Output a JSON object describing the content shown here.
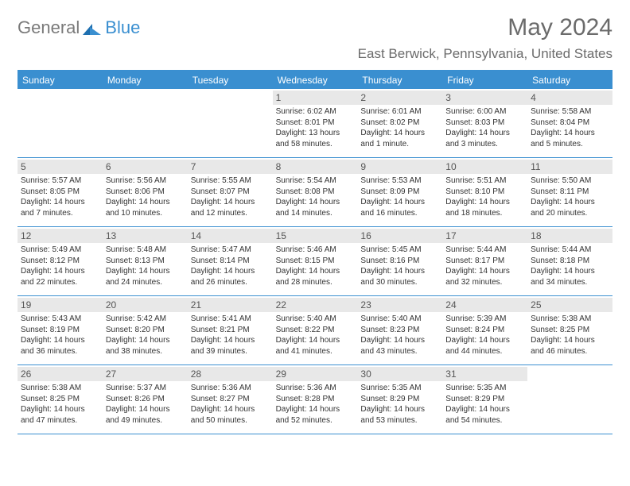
{
  "logo": {
    "part1": "General",
    "part2": "Blue"
  },
  "title": "May 2024",
  "location": "East Berwick, Pennsylvania, United States",
  "day_headers": [
    "Sunday",
    "Monday",
    "Tuesday",
    "Wednesday",
    "Thursday",
    "Friday",
    "Saturday"
  ],
  "colors": {
    "accent": "#3a8fd0",
    "header_gray": "#e8e8e8",
    "text_gray": "#6b6b6b"
  },
  "weeks": [
    [
      {
        "empty": true
      },
      {
        "empty": true
      },
      {
        "empty": true
      },
      {
        "day": "1",
        "sunrise": "Sunrise: 6:02 AM",
        "sunset": "Sunset: 8:01 PM",
        "daylight": "Daylight: 13 hours and 58 minutes."
      },
      {
        "day": "2",
        "sunrise": "Sunrise: 6:01 AM",
        "sunset": "Sunset: 8:02 PM",
        "daylight": "Daylight: 14 hours and 1 minute."
      },
      {
        "day": "3",
        "sunrise": "Sunrise: 6:00 AM",
        "sunset": "Sunset: 8:03 PM",
        "daylight": "Daylight: 14 hours and 3 minutes."
      },
      {
        "day": "4",
        "sunrise": "Sunrise: 5:58 AM",
        "sunset": "Sunset: 8:04 PM",
        "daylight": "Daylight: 14 hours and 5 minutes."
      }
    ],
    [
      {
        "day": "5",
        "sunrise": "Sunrise: 5:57 AM",
        "sunset": "Sunset: 8:05 PM",
        "daylight": "Daylight: 14 hours and 7 minutes."
      },
      {
        "day": "6",
        "sunrise": "Sunrise: 5:56 AM",
        "sunset": "Sunset: 8:06 PM",
        "daylight": "Daylight: 14 hours and 10 minutes."
      },
      {
        "day": "7",
        "sunrise": "Sunrise: 5:55 AM",
        "sunset": "Sunset: 8:07 PM",
        "daylight": "Daylight: 14 hours and 12 minutes."
      },
      {
        "day": "8",
        "sunrise": "Sunrise: 5:54 AM",
        "sunset": "Sunset: 8:08 PM",
        "daylight": "Daylight: 14 hours and 14 minutes."
      },
      {
        "day": "9",
        "sunrise": "Sunrise: 5:53 AM",
        "sunset": "Sunset: 8:09 PM",
        "daylight": "Daylight: 14 hours and 16 minutes."
      },
      {
        "day": "10",
        "sunrise": "Sunrise: 5:51 AM",
        "sunset": "Sunset: 8:10 PM",
        "daylight": "Daylight: 14 hours and 18 minutes."
      },
      {
        "day": "11",
        "sunrise": "Sunrise: 5:50 AM",
        "sunset": "Sunset: 8:11 PM",
        "daylight": "Daylight: 14 hours and 20 minutes."
      }
    ],
    [
      {
        "day": "12",
        "sunrise": "Sunrise: 5:49 AM",
        "sunset": "Sunset: 8:12 PM",
        "daylight": "Daylight: 14 hours and 22 minutes."
      },
      {
        "day": "13",
        "sunrise": "Sunrise: 5:48 AM",
        "sunset": "Sunset: 8:13 PM",
        "daylight": "Daylight: 14 hours and 24 minutes."
      },
      {
        "day": "14",
        "sunrise": "Sunrise: 5:47 AM",
        "sunset": "Sunset: 8:14 PM",
        "daylight": "Daylight: 14 hours and 26 minutes."
      },
      {
        "day": "15",
        "sunrise": "Sunrise: 5:46 AM",
        "sunset": "Sunset: 8:15 PM",
        "daylight": "Daylight: 14 hours and 28 minutes."
      },
      {
        "day": "16",
        "sunrise": "Sunrise: 5:45 AM",
        "sunset": "Sunset: 8:16 PM",
        "daylight": "Daylight: 14 hours and 30 minutes."
      },
      {
        "day": "17",
        "sunrise": "Sunrise: 5:44 AM",
        "sunset": "Sunset: 8:17 PM",
        "daylight": "Daylight: 14 hours and 32 minutes."
      },
      {
        "day": "18",
        "sunrise": "Sunrise: 5:44 AM",
        "sunset": "Sunset: 8:18 PM",
        "daylight": "Daylight: 14 hours and 34 minutes."
      }
    ],
    [
      {
        "day": "19",
        "sunrise": "Sunrise: 5:43 AM",
        "sunset": "Sunset: 8:19 PM",
        "daylight": "Daylight: 14 hours and 36 minutes."
      },
      {
        "day": "20",
        "sunrise": "Sunrise: 5:42 AM",
        "sunset": "Sunset: 8:20 PM",
        "daylight": "Daylight: 14 hours and 38 minutes."
      },
      {
        "day": "21",
        "sunrise": "Sunrise: 5:41 AM",
        "sunset": "Sunset: 8:21 PM",
        "daylight": "Daylight: 14 hours and 39 minutes."
      },
      {
        "day": "22",
        "sunrise": "Sunrise: 5:40 AM",
        "sunset": "Sunset: 8:22 PM",
        "daylight": "Daylight: 14 hours and 41 minutes."
      },
      {
        "day": "23",
        "sunrise": "Sunrise: 5:40 AM",
        "sunset": "Sunset: 8:23 PM",
        "daylight": "Daylight: 14 hours and 43 minutes."
      },
      {
        "day": "24",
        "sunrise": "Sunrise: 5:39 AM",
        "sunset": "Sunset: 8:24 PM",
        "daylight": "Daylight: 14 hours and 44 minutes."
      },
      {
        "day": "25",
        "sunrise": "Sunrise: 5:38 AM",
        "sunset": "Sunset: 8:25 PM",
        "daylight": "Daylight: 14 hours and 46 minutes."
      }
    ],
    [
      {
        "day": "26",
        "sunrise": "Sunrise: 5:38 AM",
        "sunset": "Sunset: 8:25 PM",
        "daylight": "Daylight: 14 hours and 47 minutes."
      },
      {
        "day": "27",
        "sunrise": "Sunrise: 5:37 AM",
        "sunset": "Sunset: 8:26 PM",
        "daylight": "Daylight: 14 hours and 49 minutes."
      },
      {
        "day": "28",
        "sunrise": "Sunrise: 5:36 AM",
        "sunset": "Sunset: 8:27 PM",
        "daylight": "Daylight: 14 hours and 50 minutes."
      },
      {
        "day": "29",
        "sunrise": "Sunrise: 5:36 AM",
        "sunset": "Sunset: 8:28 PM",
        "daylight": "Daylight: 14 hours and 52 minutes."
      },
      {
        "day": "30",
        "sunrise": "Sunrise: 5:35 AM",
        "sunset": "Sunset: 8:29 PM",
        "daylight": "Daylight: 14 hours and 53 minutes."
      },
      {
        "day": "31",
        "sunrise": "Sunrise: 5:35 AM",
        "sunset": "Sunset: 8:29 PM",
        "daylight": "Daylight: 14 hours and 54 minutes."
      },
      {
        "empty": true
      }
    ]
  ]
}
